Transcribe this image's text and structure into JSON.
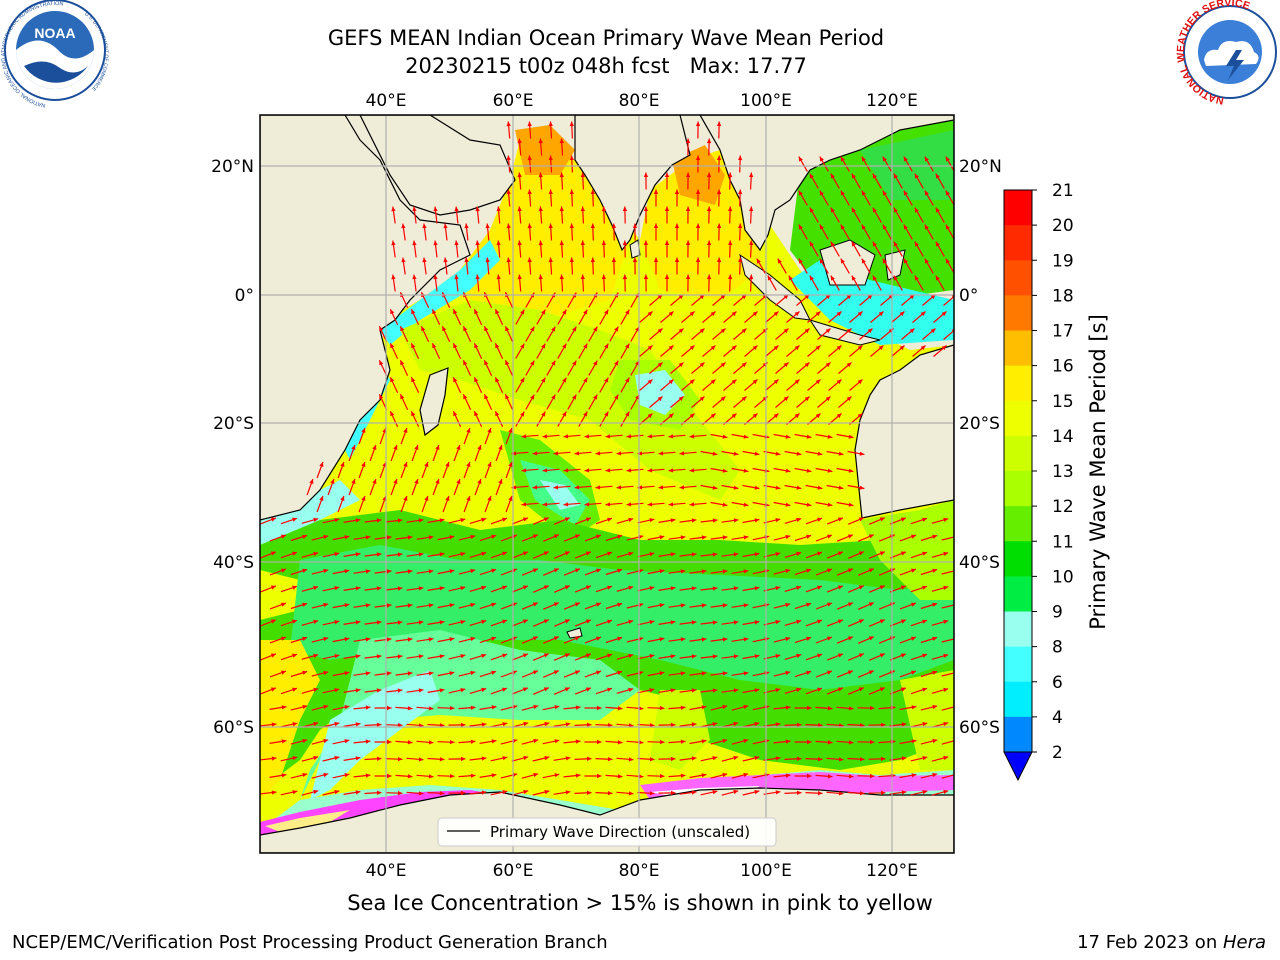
{
  "header": {
    "title_line1": "GEFS MEAN Indian Ocean Primary Wave Mean Period",
    "title_line2": "20230215 t00z 048h fcst   Max: 17.77"
  },
  "logos": {
    "noaa_text": "NOAA",
    "noaa_ring": "NATIONAL OCEANIC AND ATMOSPHERIC ADMINISTRATION",
    "noaa_ring_bottom": "U.S. DEPARTMENT OF COMMERCE",
    "nws_ring": "NATIONAL WEATHER SERVICE"
  },
  "map": {
    "lon_ticks": [
      "40°E",
      "60°E",
      "80°E",
      "100°E",
      "120°E"
    ],
    "lat_ticks_left": [
      "20°N",
      "0°",
      "20°S",
      "40°S",
      "60°S"
    ],
    "lat_ticks_right": [
      "20°N",
      "0°",
      "20°S",
      "40°S",
      "60°S"
    ],
    "legend_label": "Primary Wave Direction (unscaled)",
    "arrow_color": "#ff0000"
  },
  "colorbar": {
    "label": "Primary Wave Mean Period [s]",
    "ticks": [
      "21",
      "20",
      "19",
      "18",
      "17",
      "16",
      "15",
      "14",
      "13",
      "12",
      "11",
      "10",
      "9",
      "8",
      "6",
      "4",
      "2"
    ],
    "colors": [
      "#ff0000",
      "#ff2a00",
      "#ff5000",
      "#ff7800",
      "#ff9600",
      "#ffbe00",
      "#ffee00",
      "#eeff00",
      "#ccff00",
      "#aaff00",
      "#66ee00",
      "#00dd00",
      "#00ee44",
      "#44ff88",
      "#99ffee",
      "#44ffff",
      "#00eeff",
      "#0088ff",
      "#0000ff"
    ]
  },
  "notes": {
    "ice": "Sea Ice Concentration > 15% is shown in pink to yellow"
  },
  "footer": {
    "left": "NCEP/EMC/Verification Post Processing Product Generation Branch",
    "date": "17 Feb 2023 on ",
    "machine": "Hera"
  }
}
